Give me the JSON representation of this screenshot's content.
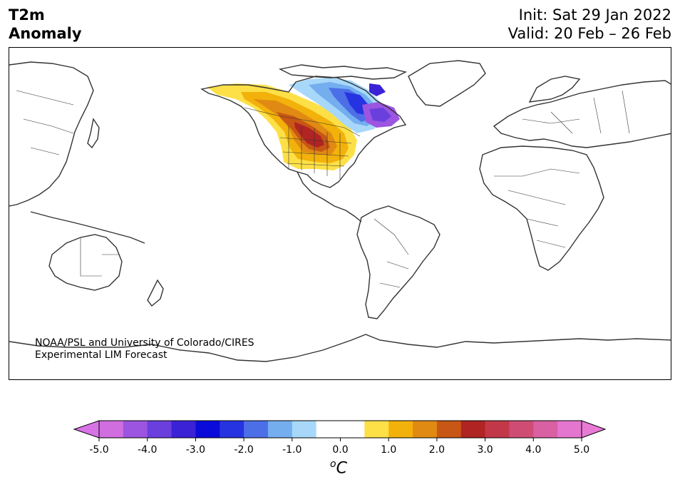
{
  "header": {
    "variable_line1": "T2m",
    "variable_line2": "Anomaly",
    "init": "Init: Sat 29 Jan 2022",
    "valid": "Valid: 20 Feb – 26 Feb"
  },
  "credit": {
    "line1": "NOAA/PSL and University of Colorado/CIRES",
    "line2": "Experimental LIM Forecast"
  },
  "colorbar": {
    "units_base": "C",
    "units_sup": "o",
    "min": -5.0,
    "max": 5.0,
    "ticks": [
      "-5.0",
      "-4.0",
      "-3.0",
      "-2.0",
      "-1.0",
      "0.0",
      "1.0",
      "2.0",
      "3.0",
      "4.0",
      "5.0"
    ],
    "under_color": "#d873e6",
    "over_color": "#e87ad6",
    "colors": [
      "#d06ee0",
      "#9b55e0",
      "#6a3fde",
      "#3b22d6",
      "#0a0bd8",
      "#2633e0",
      "#4c6fe8",
      "#74aeef",
      "#a7d8fa",
      "#ffffff",
      "#ffffff",
      "#fde047",
      "#f2b20b",
      "#e08a13",
      "#c85614",
      "#b02424",
      "#c33848",
      "#cf4c74",
      "#da60a4",
      "#e476cf"
    ]
  },
  "map": {
    "projection": "cylindrical, centered 180°",
    "anomaly_region": "North America",
    "warm_anomaly_colors": [
      "#fde047",
      "#f2b20b",
      "#e08a13",
      "#c85614",
      "#b02424"
    ],
    "cold_anomaly_colors": [
      "#a7d8fa",
      "#74aeef",
      "#4c6fe8",
      "#2633e0",
      "#6a3fde",
      "#9b55e0"
    ]
  }
}
